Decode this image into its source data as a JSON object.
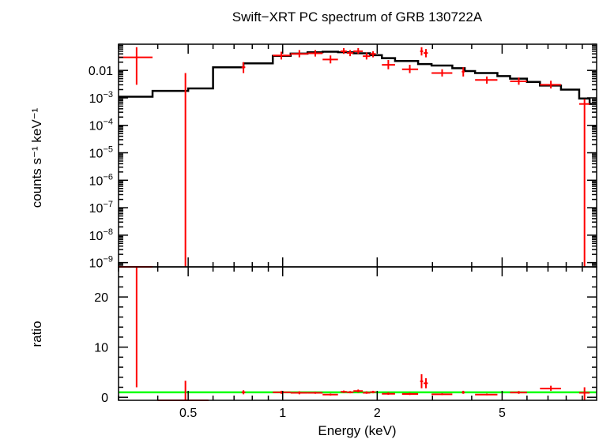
{
  "chart_data": [
    {
      "panel": "top",
      "type": "line",
      "title": "Swift−XRT PC spectrum of GRB 130722A",
      "ylabel": "counts s⁻¹ keV⁻¹",
      "xscale": "log",
      "yscale": "log",
      "xlim": [
        0.3,
        10
      ],
      "ylim": [
        7e-10,
        0.09
      ],
      "yticks": [
        {
          "value": 0.01,
          "label": "0.01"
        },
        {
          "value": 0.001,
          "base": "10",
          "exp": "−3"
        },
        {
          "value": 0.0001,
          "base": "10",
          "exp": "−4"
        },
        {
          "value": 1e-05,
          "base": "10",
          "exp": "−5"
        },
        {
          "value": 1e-06,
          "base": "10",
          "exp": "−6"
        },
        {
          "value": 1e-07,
          "base": "10",
          "exp": "−7"
        },
        {
          "value": 1e-08,
          "base": "10",
          "exp": "−8"
        },
        {
          "value": 1e-09,
          "base": "10",
          "exp": "−9"
        }
      ],
      "series": [
        {
          "kind": "data",
          "color": "#ff0000",
          "points": [
            {
              "x": 0.3425,
              "xlo": 0.3,
              "xhi": 0.385,
              "y": 0.03,
              "ylo": 0.003,
              "yhi": 0.07
            },
            {
              "x": 0.49,
              "xlo": 0.49,
              "xhi": 0.49,
              "y": 0.0006,
              "ylo": 7e-10,
              "yhi": 0.008
            },
            {
              "x": 0.75,
              "xlo": 0.74,
              "xhi": 0.76,
              "y": 0.013,
              "ylo": 0.008,
              "yhi": 0.02
            },
            {
              "x": 0.99,
              "xlo": 0.93,
              "xhi": 1.06,
              "y": 0.035,
              "ylo": 0.025,
              "yhi": 0.048
            },
            {
              "x": 1.13,
              "xlo": 1.06,
              "xhi": 1.2,
              "y": 0.04,
              "ylo": 0.03,
              "yhi": 0.055
            },
            {
              "x": 1.27,
              "xlo": 1.2,
              "xhi": 1.34,
              "y": 0.042,
              "ylo": 0.032,
              "yhi": 0.055
            },
            {
              "x": 1.42,
              "xlo": 1.34,
              "xhi": 1.5,
              "y": 0.025,
              "ylo": 0.018,
              "yhi": 0.035
            },
            {
              "x": 1.565,
              "xlo": 1.53,
              "xhi": 1.6,
              "y": 0.05,
              "ylo": 0.04,
              "yhi": 0.065
            },
            {
              "x": 1.64,
              "xlo": 1.6,
              "xhi": 1.68,
              "y": 0.043,
              "ylo": 0.033,
              "yhi": 0.055
            },
            {
              "x": 1.74,
              "xlo": 1.68,
              "xhi": 1.8,
              "y": 0.05,
              "ylo": 0.04,
              "yhi": 0.065
            },
            {
              "x": 1.85,
              "xlo": 1.8,
              "xhi": 1.9,
              "y": 0.033,
              "ylo": 0.025,
              "yhi": 0.045
            },
            {
              "x": 1.94,
              "xlo": 1.9,
              "xhi": 1.98,
              "y": 0.04,
              "ylo": 0.03,
              "yhi": 0.05
            },
            {
              "x": 2.17,
              "xlo": 2.07,
              "xhi": 2.28,
              "y": 0.016,
              "ylo": 0.011,
              "yhi": 0.024
            },
            {
              "x": 2.54,
              "xlo": 2.4,
              "xhi": 2.7,
              "y": 0.011,
              "ylo": 0.008,
              "yhi": 0.016
            },
            {
              "x": 2.77,
              "xlo": 2.74,
              "xhi": 2.8,
              "y": 0.05,
              "ylo": 0.035,
              "yhi": 0.07
            },
            {
              "x": 2.86,
              "xlo": 2.81,
              "xhi": 2.9,
              "y": 0.043,
              "ylo": 0.03,
              "yhi": 0.06
            },
            {
              "x": 3.22,
              "xlo": 2.98,
              "xhi": 3.47,
              "y": 0.008,
              "ylo": 0.006,
              "yhi": 0.011
            },
            {
              "x": 3.76,
              "xlo": 3.72,
              "xhi": 3.8,
              "y": 0.009,
              "ylo": 0.006,
              "yhi": 0.013
            },
            {
              "x": 4.47,
              "xlo": 4.1,
              "xhi": 4.83,
              "y": 0.0045,
              "ylo": 0.0033,
              "yhi": 0.006
            },
            {
              "x": 5.65,
              "xlo": 5.3,
              "xhi": 6.0,
              "y": 0.004,
              "ylo": 0.003,
              "yhi": 0.0055
            },
            {
              "x": 7.15,
              "xlo": 6.6,
              "xhi": 7.7,
              "y": 0.003,
              "ylo": 0.0022,
              "yhi": 0.0042
            },
            {
              "x": 9.15,
              "xlo": 8.8,
              "xhi": 9.5,
              "y": 0.0006,
              "ylo": 7e-10,
              "yhi": 0.0009
            }
          ]
        },
        {
          "kind": "model",
          "color": "#000000",
          "edges": [
            0.3,
            0.385,
            0.5,
            0.6,
            0.75,
            0.93,
            1.06,
            1.2,
            1.34,
            1.5,
            1.68,
            1.9,
            2.07,
            2.28,
            2.7,
            2.98,
            3.47,
            3.8,
            4.1,
            4.83,
            5.3,
            6.0,
            6.6,
            7.7,
            8.8,
            9.5,
            10.0
          ],
          "values": [
            0.0011,
            0.0018,
            0.0022,
            0.013,
            0.018,
            0.034,
            0.041,
            0.046,
            0.048,
            0.046,
            0.042,
            0.036,
            0.028,
            0.022,
            0.017,
            0.015,
            0.012,
            0.0095,
            0.008,
            0.0062,
            0.005,
            0.0038,
            0.0028,
            0.002,
            0.00095,
            0.0006
          ]
        }
      ]
    },
    {
      "panel": "bottom",
      "type": "line",
      "ylabel": "ratio",
      "xlabel": "Energy (keV)",
      "xscale": "log",
      "xlim": [
        0.3,
        10
      ],
      "ylim": [
        -0.6,
        26
      ],
      "yticks": [
        0,
        10,
        20
      ],
      "xticks": [
        {
          "value": 0.5,
          "label": "0.5"
        },
        {
          "value": 1,
          "label": "1"
        },
        {
          "value": 2,
          "label": "2"
        },
        {
          "value": 5,
          "label": "5"
        }
      ],
      "reference_line": {
        "value": 1,
        "color": "#00ff00"
      },
      "series": [
        {
          "kind": "data",
          "color": "#ff0000",
          "points": [
            {
              "x": 0.3425,
              "xlo": 0.3,
              "xhi": 0.385,
              "y": 26,
              "ylo": 2,
              "yhi": 26
            },
            {
              "x": 0.49,
              "xlo": 0.4,
              "xhi": 0.58,
              "y": -0.6,
              "ylo": -0.6,
              "yhi": 3.3
            },
            {
              "x": 0.75,
              "xlo": 0.74,
              "xhi": 0.76,
              "y": 1.0,
              "ylo": 0.6,
              "yhi": 1.4
            },
            {
              "x": 0.99,
              "xlo": 0.93,
              "xhi": 1.06,
              "y": 1.0,
              "ylo": 0.7,
              "yhi": 1.3
            },
            {
              "x": 1.13,
              "xlo": 1.06,
              "xhi": 1.2,
              "y": 0.9,
              "ylo": 0.6,
              "yhi": 1.2
            },
            {
              "x": 1.27,
              "xlo": 1.2,
              "xhi": 1.34,
              "y": 0.9,
              "ylo": 0.7,
              "yhi": 1.1
            },
            {
              "x": 1.42,
              "xlo": 1.34,
              "xhi": 1.5,
              "y": 0.55,
              "ylo": 0.35,
              "yhi": 0.75
            },
            {
              "x": 1.565,
              "xlo": 1.53,
              "xhi": 1.6,
              "y": 1.1,
              "ylo": 0.85,
              "yhi": 1.35
            },
            {
              "x": 1.64,
              "xlo": 1.6,
              "xhi": 1.68,
              "y": 1.0,
              "ylo": 0.8,
              "yhi": 1.25
            },
            {
              "x": 1.74,
              "xlo": 1.68,
              "xhi": 1.8,
              "y": 1.25,
              "ylo": 0.95,
              "yhi": 1.55
            },
            {
              "x": 1.85,
              "xlo": 1.8,
              "xhi": 1.9,
              "y": 0.9,
              "ylo": 0.7,
              "yhi": 1.2
            },
            {
              "x": 1.94,
              "xlo": 1.9,
              "xhi": 1.98,
              "y": 1.05,
              "ylo": 0.8,
              "yhi": 1.3
            },
            {
              "x": 2.17,
              "xlo": 2.07,
              "xhi": 2.28,
              "y": 0.7,
              "ylo": 0.5,
              "yhi": 1.0
            },
            {
              "x": 2.54,
              "xlo": 2.4,
              "xhi": 2.7,
              "y": 0.65,
              "ylo": 0.45,
              "yhi": 0.9
            },
            {
              "x": 2.77,
              "xlo": 2.74,
              "xhi": 2.8,
              "y": 3.2,
              "ylo": 1.8,
              "yhi": 4.6
            },
            {
              "x": 2.86,
              "xlo": 2.81,
              "xhi": 2.9,
              "y": 2.8,
              "ylo": 1.8,
              "yhi": 3.8
            },
            {
              "x": 3.22,
              "xlo": 2.98,
              "xhi": 3.47,
              "y": 0.6,
              "ylo": 0.45,
              "yhi": 0.8
            },
            {
              "x": 3.76,
              "xlo": 3.72,
              "xhi": 3.8,
              "y": 0.95,
              "ylo": 0.7,
              "yhi": 1.3
            },
            {
              "x": 4.47,
              "xlo": 4.1,
              "xhi": 4.83,
              "y": 0.55,
              "ylo": 0.4,
              "yhi": 0.75
            },
            {
              "x": 5.65,
              "xlo": 5.3,
              "xhi": 6.0,
              "y": 0.95,
              "ylo": 0.7,
              "yhi": 1.25
            },
            {
              "x": 7.15,
              "xlo": 6.6,
              "xhi": 7.7,
              "y": 1.75,
              "ylo": 1.3,
              "yhi": 2.3
            },
            {
              "x": 9.15,
              "xlo": 8.8,
              "xhi": 9.5,
              "y": 0.9,
              "ylo": -0.6,
              "yhi": 2.0
            }
          ]
        }
      ]
    }
  ]
}
